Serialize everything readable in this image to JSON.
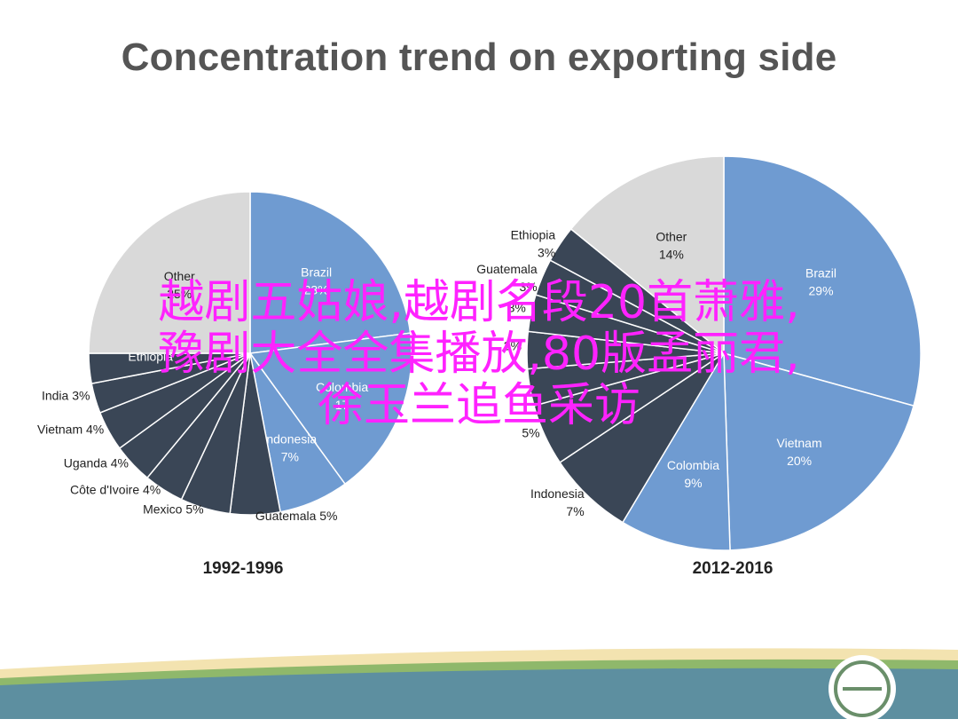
{
  "title": "Concentration trend on exporting side",
  "overlay": {
    "lines": [
      "越剧五姑娘,越剧名段20首萧雅,",
      "豫剧大全全集播放,80版孟丽君,",
      "徐玉兰追鱼采访"
    ]
  },
  "colors": {
    "brazil": "#6f9bd1",
    "other": "#d9d9d9",
    "dark": "#3a4656",
    "white_text": "#ffffff",
    "dark_text": "#222222",
    "overlay": "#ff22ff",
    "band_green": "#8fb86b",
    "band_blue": "#5d8fa0",
    "band_yellow": "#f3e3b0"
  },
  "chart_data": [
    {
      "type": "pie",
      "title": "1992-1996",
      "slices": [
        {
          "label": "Brazil",
          "value": 23,
          "display": "23%"
        },
        {
          "label": "Colombia",
          "value": 17,
          "display": "17"
        },
        {
          "label": "Indonesia",
          "value": 7,
          "display": "7%"
        },
        {
          "label": "Guatemala",
          "value": 5,
          "display": "Guatemala 5%"
        },
        {
          "label": "Mexico",
          "value": 5,
          "display": "Mexico 5%"
        },
        {
          "label": "Côte d'Ivoire",
          "value": 4,
          "display": "Côte d'Ivoire 4%"
        },
        {
          "label": "Uganda",
          "value": 4,
          "display": "Uganda 4%"
        },
        {
          "label": "Vietnam",
          "value": 4,
          "display": "Vietnam 4%"
        },
        {
          "label": "India",
          "value": 3,
          "display": "India 3%"
        },
        {
          "label": "Ethiopia",
          "value": 3,
          "display": ""
        },
        {
          "label": "Other",
          "value": 25,
          "display": "25%"
        }
      ]
    },
    {
      "type": "pie",
      "title": "2012-2016",
      "slices": [
        {
          "label": "Brazil",
          "value": 29,
          "display": "29%"
        },
        {
          "label": "Vietnam",
          "value": 20,
          "display": "20%"
        },
        {
          "label": "Colombia",
          "value": 9,
          "display": "9%"
        },
        {
          "label": "Indonesia",
          "value": 7,
          "display": "7%"
        },
        {
          "label": "",
          "value": 5,
          "display": "5%"
        },
        {
          "label": "",
          "value": 3,
          "display": ""
        },
        {
          "label": "",
          "value": 3,
          "display": "3%"
        },
        {
          "label": "",
          "value": 3,
          "display": "3%"
        },
        {
          "label": "Guatemala",
          "value": 3,
          "display": "3%"
        },
        {
          "label": "Ethiopia",
          "value": 3,
          "display": "3%"
        },
        {
          "label": "Other",
          "value": 14,
          "display": "14%"
        }
      ]
    }
  ]
}
